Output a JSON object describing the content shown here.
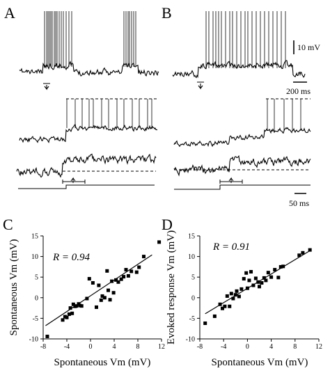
{
  "panels": {
    "A": "A",
    "B": "B",
    "C": "C",
    "D": "D"
  },
  "scale_bars": {
    "voltage": "10 mV",
    "time_top": "200 ms",
    "time_bottom": "50 ms"
  },
  "chart_data": [
    {
      "type": "scatter",
      "panel": "C",
      "xlabel": "Spontaneous Vm (mV)",
      "ylabel": "Spontaneous Vm (mV)",
      "xlim": [
        -8,
        12
      ],
      "ylim": [
        -10,
        15
      ],
      "xticks": [
        -8,
        -4,
        0,
        4,
        8,
        12
      ],
      "yticks": [
        -10,
        -5,
        0,
        5,
        10,
        15
      ],
      "annotation": "R = 0.94",
      "x": [
        -7.3,
        -4.7,
        -4.3,
        -4.0,
        -3.6,
        -3.4,
        -3.1,
        -2.9,
        -2.6,
        -2.4,
        -2.0,
        -1.8,
        -1.5,
        -0.6,
        -0.2,
        0.4,
        1.0,
        1.4,
        1.8,
        2.0,
        2.4,
        2.8,
        3.0,
        3.3,
        3.6,
        3.9,
        4.3,
        4.7,
        5.2,
        5.6,
        6.0,
        6.4,
        6.9,
        7.8,
        8.2,
        9.0,
        11.6
      ],
      "y": [
        -9.4,
        -5.4,
        -4.6,
        -4.8,
        -4.0,
        -2.5,
        -3.8,
        -1.6,
        -2.1,
        -2.0,
        -1.5,
        -1.9,
        -2.0,
        -0.2,
        4.6,
        3.6,
        -2.3,
        3.0,
        -0.6,
        0.4,
        0.0,
        6.5,
        1.8,
        -0.5,
        4.0,
        1.2,
        4.3,
        3.8,
        4.5,
        5.1,
        6.8,
        5.3,
        6.4,
        6.2,
        7.4,
        10.0,
        13.5
      ],
      "fit": {
        "x": [
          -7.6,
          10.4
        ],
        "y": [
          -6.8,
          10.4
        ]
      }
    },
    {
      "type": "scatter",
      "panel": "D",
      "xlabel": "Spontaneous Vm (mV)",
      "ylabel": "Evoked response Vm (mV)",
      "xlim": [
        -8,
        12
      ],
      "ylim": [
        -10,
        15
      ],
      "xticks": [
        -8,
        -4,
        0,
        4,
        8,
        12
      ],
      "yticks": [
        -10,
        -5,
        0,
        5,
        10,
        15
      ],
      "annotation": "R = 0.91",
      "x": [
        -7.1,
        -5.5,
        -4.6,
        -4.2,
        -3.8,
        -3.4,
        -3.0,
        -2.7,
        -2.4,
        -2.0,
        -1.8,
        -1.4,
        -1.0,
        -0.6,
        -0.2,
        0.0,
        0.3,
        0.6,
        1.0,
        1.4,
        1.8,
        2.0,
        2.4,
        2.8,
        3.1,
        3.5,
        4.0,
        4.6,
        5.2,
        5.6,
        6.0,
        8.7,
        9.3,
        10.5
      ],
      "y": [
        -6.2,
        -4.5,
        -1.6,
        -2.6,
        -2.1,
        0.4,
        -2.1,
        1.0,
        -0.2,
        0.7,
        1.6,
        0.3,
        2.1,
        4.6,
        6.0,
        2.3,
        4.2,
        6.3,
        3.0,
        4.7,
        3.8,
        2.7,
        3.6,
        4.8,
        4.2,
        6.1,
        5.0,
        6.8,
        4.9,
        7.5,
        7.6,
        10.3,
        10.9,
        11.6
      ],
      "fit": {
        "x": [
          -7.1,
          10.6
        ],
        "y": [
          -3.9,
          11.5
        ]
      }
    }
  ]
}
